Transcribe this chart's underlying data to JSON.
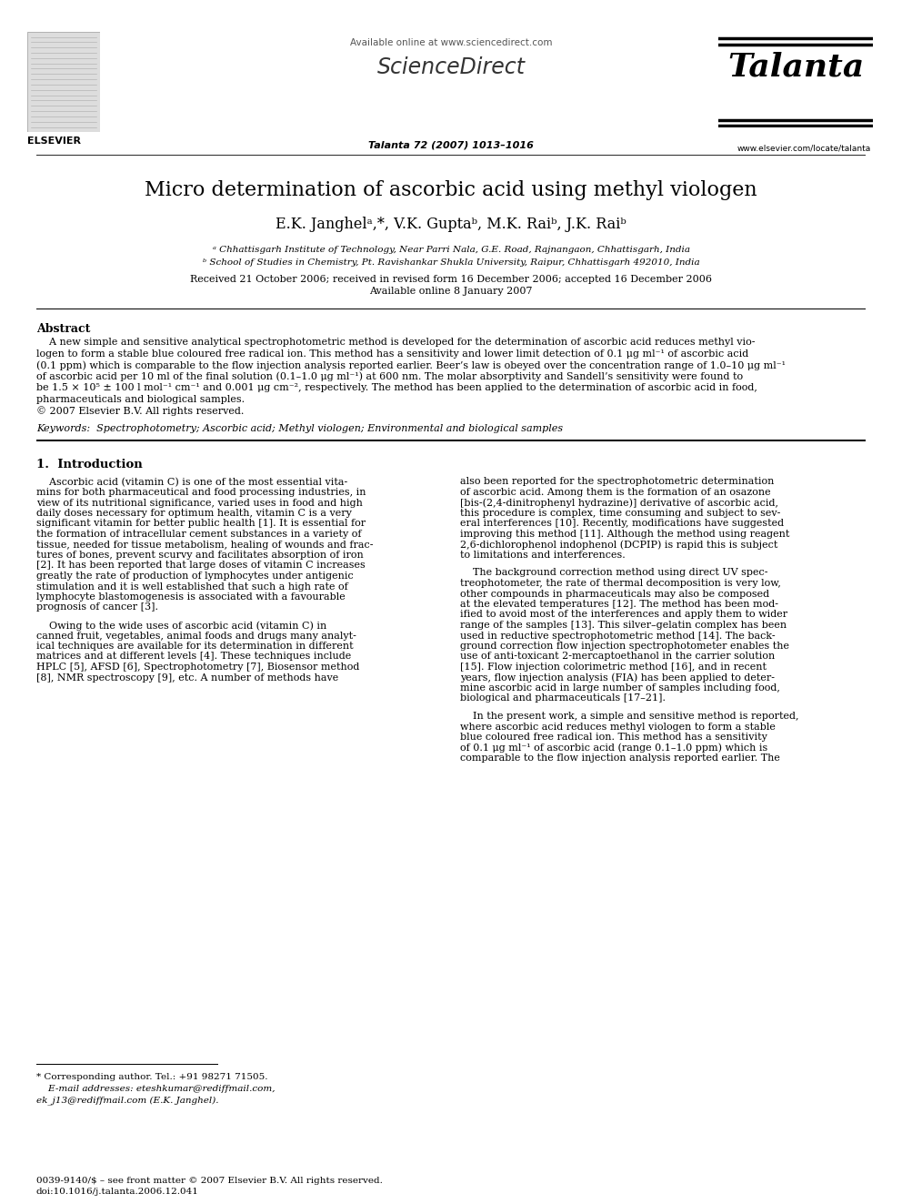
{
  "title": "Micro determination of ascorbic acid using methyl viologen",
  "author_line": "E.K. Janghelᵃ,*, V.K. Guptaᵇ, M.K. Raiᵇ, J.K. Raiᵇ",
  "affil_a": "ᵃ Chhattisgarh Institute of Technology, Near Parri Nala, G.E. Road, Rajnangaon, Chhattisgarh, India",
  "affil_b": "ᵇ School of Studies in Chemistry, Pt. Ravishankar Shukla University, Raipur, Chhattisgarh 492010, India",
  "received": "Received 21 October 2006; received in revised form 16 December 2006; accepted 16 December 2006",
  "available_online_date": "Available online 8 January 2007",
  "journal_ref": "Talanta 72 (2007) 1013–1016",
  "available_online_header": "Available online at www.sciencedirect.com",
  "sciencedirect": "ScienceDirect",
  "talanta": "Talanta",
  "elsevier": "ELSEVIER",
  "website": "www.elsevier.com/locate/talanta",
  "abstract_title": "Abstract",
  "abs_line1": "    A new simple and sensitive analytical spectrophotometric method is developed for the determination of ascorbic acid reduces methyl vio-",
  "abs_line2": "logen to form a stable blue coloured free radical ion. This method has a sensitivity and lower limit detection of 0.1 μg ml⁻¹ of ascorbic acid",
  "abs_line3": "(0.1 ppm) which is comparable to the flow injection analysis reported earlier. Beer’s law is obeyed over the concentration range of 1.0–10 μg ml⁻¹",
  "abs_line4": "of ascorbic acid per 10 ml of the final solution (0.1–1.0 μg ml⁻¹) at 600 nm. The molar absorptivity and Sandell’s sensitivity were found to",
  "abs_line5": "be 1.5 × 10⁵ ± 100 l mol⁻¹ cm⁻¹ and 0.001 μg cm⁻², respectively. The method has been applied to the determination of ascorbic acid in food,",
  "abs_line6": "pharmaceuticals and biological samples.",
  "abs_line7": "© 2007 Elsevier B.V. All rights reserved.",
  "keywords": "Keywords:  Spectrophotometry; Ascorbic acid; Methyl viologen; Environmental and biological samples",
  "sec1_title": "1.  Introduction",
  "c1p1_lines": [
    "    Ascorbic acid (vitamin C) is one of the most essential vita-",
    "mins for both pharmaceutical and food processing industries, in",
    "view of its nutritional significance, varied uses in food and high",
    "daily doses necessary for optimum health, vitamin C is a very",
    "significant vitamin for better public health [1]. It is essential for",
    "the formation of intracellular cement substances in a variety of",
    "tissue, needed for tissue metabolism, healing of wounds and frac-",
    "tures of bones, prevent scurvy and facilitates absorption of iron",
    "[2]. It has been reported that large doses of vitamin C increases",
    "greatly the rate of production of lymphocytes under antigenic",
    "stimulation and it is well established that such a high rate of",
    "lymphocyte blastomogenesis is associated with a favourable",
    "prognosis of cancer [3]."
  ],
  "c1p2_lines": [
    "    Owing to the wide uses of ascorbic acid (vitamin C) in",
    "canned fruit, vegetables, animal foods and drugs many analyt-",
    "ical techniques are available for its determination in different",
    "matrices and at different levels [4]. These techniques include",
    "HPLC [5], AFSD [6], Spectrophotometry [7], Biosensor method",
    "[8], NMR spectroscopy [9], etc. A number of methods have"
  ],
  "c2p1_lines": [
    "also been reported for the spectrophotometric determination",
    "of ascorbic acid. Among them is the formation of an osazone",
    "[bis-(2,4-dinitrophenyl hydrazine)] derivative of ascorbic acid,",
    "this procedure is complex, time consuming and subject to sev-",
    "eral interferences [10]. Recently, modifications have suggested",
    "improving this method [11]. Although the method using reagent",
    "2,6-dichlorophenol indophenol (DCPIP) is rapid this is subject",
    "to limitations and interferences."
  ],
  "c2p2_lines": [
    "    The background correction method using direct UV spec-",
    "treophotometer, the rate of thermal decomposition is very low,",
    "other compounds in pharmaceuticals may also be composed",
    "at the elevated temperatures [12]. The method has been mod-",
    "ified to avoid most of the interferences and apply them to wider",
    "range of the samples [13]. This silver–gelatin complex has been",
    "used in reductive spectrophotometric method [14]. The back-",
    "ground correction flow injection spectrophotometer enables the",
    "use of anti-toxicant 2-mercaptoethanol in the carrier solution",
    "[15]. Flow injection colorimetric method [16], and in recent",
    "years, flow injection analysis (FIA) has been applied to deter-",
    "mine ascorbic acid in large number of samples including food,",
    "biological and pharmaceuticals [17–21]."
  ],
  "c2p3_lines": [
    "    In the present work, a simple and sensitive method is reported,",
    "where ascorbic acid reduces methyl viologen to form a stable",
    "blue coloured free radical ion. This method has a sensitivity",
    "of 0.1 μg ml⁻¹ of ascorbic acid (range 0.1–1.0 ppm) which is",
    "comparable to the flow injection analysis reported earlier. The"
  ],
  "footnote_line": "* Corresponding author. Tel.: +91 98271 71505.",
  "footnote_email1": "    E-mail addresses: eteshkumar@rediffmail.com,",
  "footnote_email2": "ek_j13@rediffmail.com (E.K. Janghel).",
  "footer_issn": "0039-9140/$ – see front matter © 2007 Elsevier B.V. All rights reserved.",
  "footer_doi": "doi:10.1016/j.talanta.2006.12.041",
  "bg_color": "#ffffff",
  "text_color": "#000000",
  "blue_color": "#000099",
  "gray_color": "#555555"
}
